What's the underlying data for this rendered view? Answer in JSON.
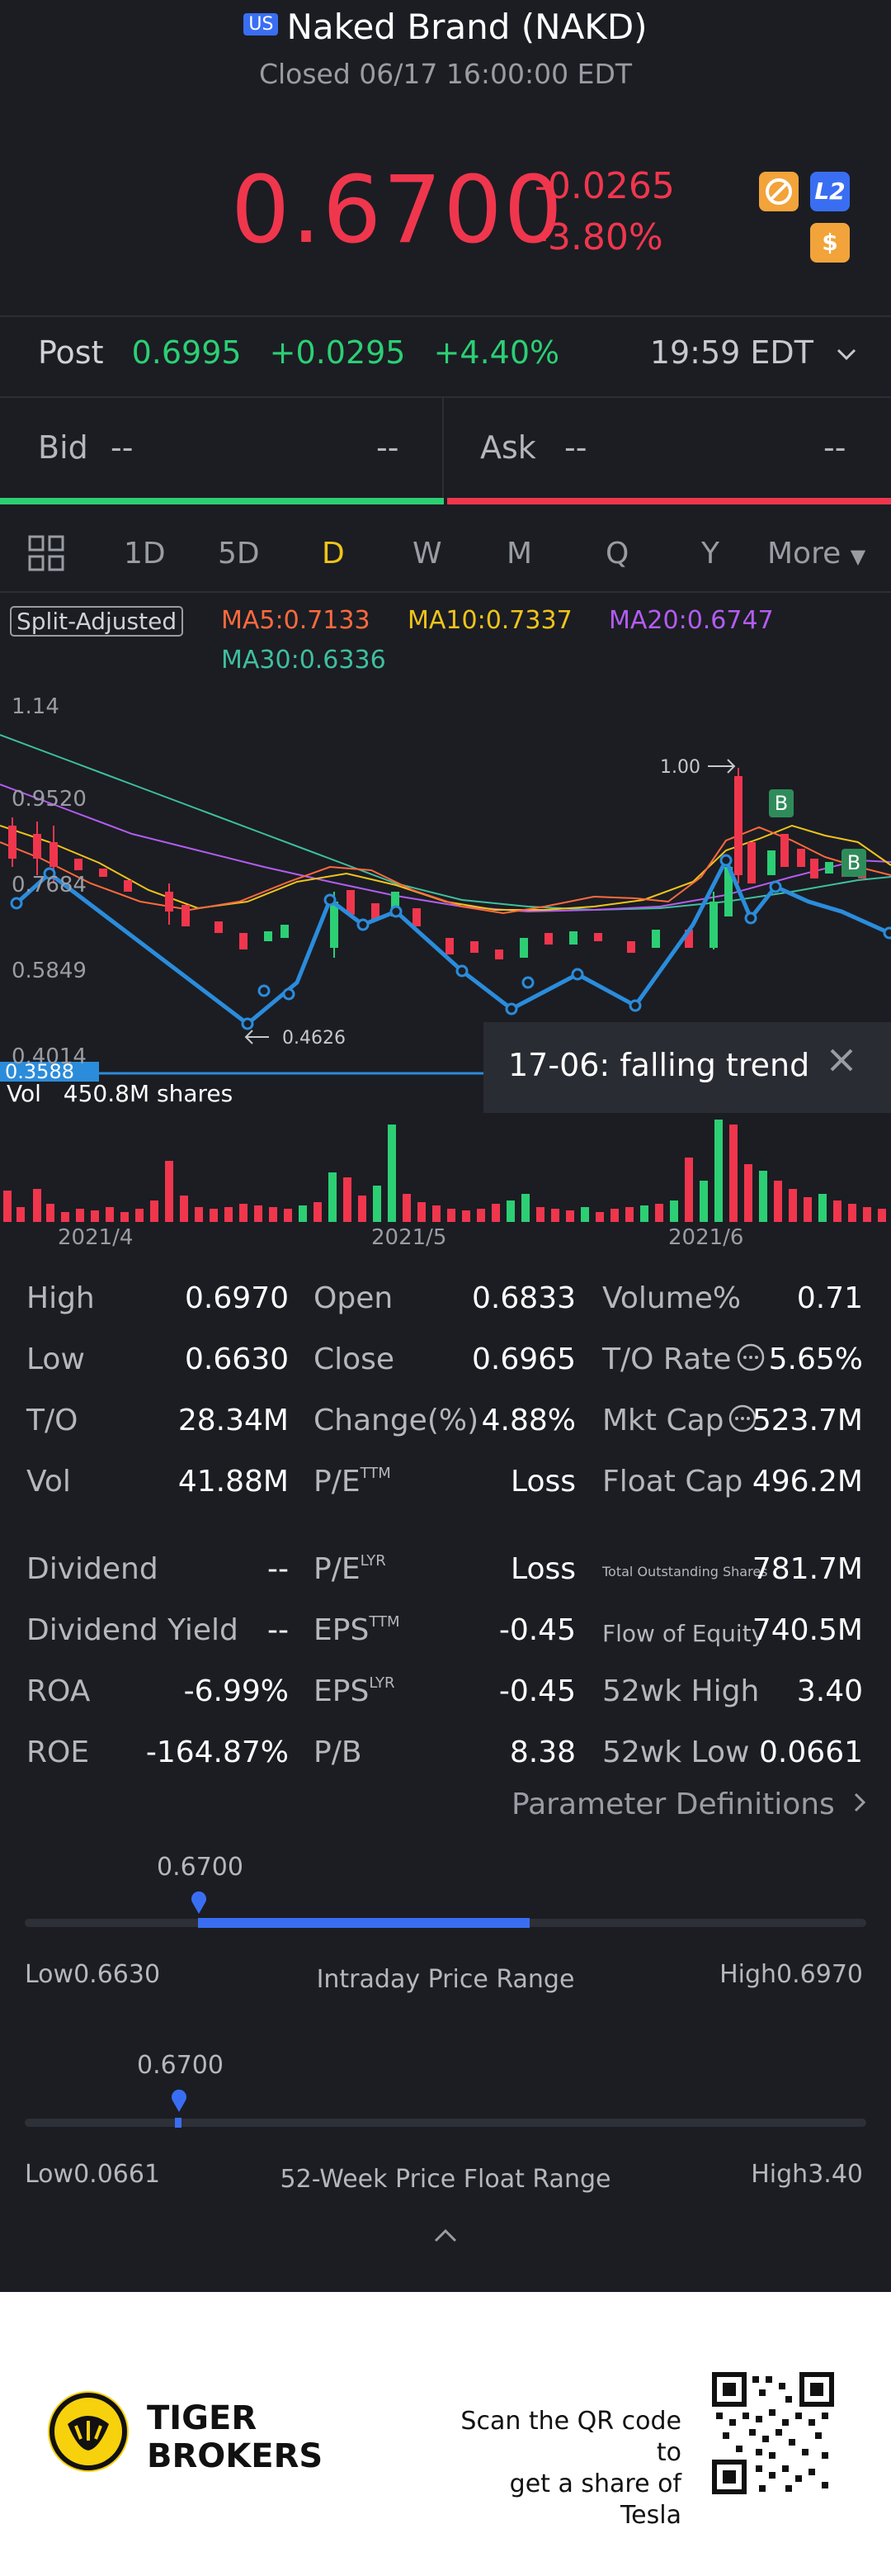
{
  "header": {
    "market_badge": "US",
    "title": "Naked Brand (NAKD)",
    "status": "Closed 06/17 16:00:00 EDT"
  },
  "quote": {
    "price": "0.6700",
    "change": "-0.0265",
    "change_pct": "-3.80%",
    "icons": [
      "chart-tool-icon",
      "level2-icon",
      "dollar-icon"
    ],
    "level2_label": "L2",
    "dollar_label": "$"
  },
  "post": {
    "label": "Post",
    "price": "0.6995",
    "change": "+0.0295",
    "change_pct": "+4.40%",
    "time": "19:59 EDT"
  },
  "bidask": {
    "bid_label": "Bid",
    "bid_price": "--",
    "bid_size": "--",
    "ask_label": "Ask",
    "ask_price": "--",
    "ask_size": "--"
  },
  "tabs": [
    "1D",
    "5D",
    "D",
    "W",
    "M",
    "Q",
    "Y",
    "More"
  ],
  "active_tab": "D",
  "ma": {
    "badge": "Split-Adjusted",
    "ma5": "MA5:0.7133",
    "ma10": "MA10:0.7337",
    "ma20": "MA20:0.6747",
    "ma30": "MA30:0.6336"
  },
  "chart_axis": {
    "y1": "1.14",
    "y2": "0.9520",
    "y3": "0.7684",
    "y4": "0.5849",
    "y5": "0.4014",
    "current_price_tag": "0.3588",
    "high_marker": "1.00",
    "low_marker": "0.4626",
    "buy_mark": "B",
    "x1": "2021/4",
    "x2": "2021/5",
    "x3": "2021/6"
  },
  "trend_popup": {
    "text": "17-06: falling trend"
  },
  "volume": {
    "label": "Vol",
    "value": "450.8M shares"
  },
  "stats": {
    "rows": [
      [
        "High",
        "0.6970",
        "Open",
        "0.6833",
        "Volume%",
        "0.71"
      ],
      [
        "Low",
        "0.6630",
        "Close",
        "0.6965",
        "T/O Rate",
        "5.65%"
      ],
      [
        "T/O",
        "28.34M",
        "Change(%)",
        "4.88%",
        "Mkt Cap",
        "523.7M"
      ],
      [
        "Vol",
        "41.88M",
        "P/E",
        "Loss",
        "Float Cap",
        "496.2M"
      ],
      [
        "Dividend",
        "--",
        "P/E",
        "Loss",
        "Total Outstanding Shares",
        "781.7M"
      ],
      [
        "Dividend Yield",
        "--",
        "EPS",
        "-0.45",
        "Flow of Equity",
        "740.5M"
      ],
      [
        "ROA",
        "-6.99%",
        "EPS",
        "-0.45",
        "52wk High",
        "3.40"
      ],
      [
        "ROE",
        "-164.87%",
        "P/B",
        "8.38",
        "52wk Low",
        "0.0661"
      ]
    ],
    "sup_ttm": "TTM",
    "sup_lyr": "LYR"
  },
  "param_link": "Parameter Definitions",
  "intraday": {
    "current": "0.6700",
    "low": "Low0.6630",
    "high": "High0.6970",
    "title": "Intraday Price Range",
    "position": 0.206
  },
  "week52": {
    "current": "0.6700",
    "low": "Low0.0661",
    "high": "High3.40",
    "title": "52-Week Price Float Range",
    "position": 0.182
  },
  "footer": {
    "brand_line1": "TIGER",
    "brand_line2": "BROKERS",
    "scan_line1": "Scan the QR code to",
    "scan_line2": "get a share of Tesla"
  },
  "colors": {
    "up": "#2ccf74",
    "down": "#f0364d",
    "accent": "#3a6ef2",
    "active_tab": "#f0c419"
  }
}
